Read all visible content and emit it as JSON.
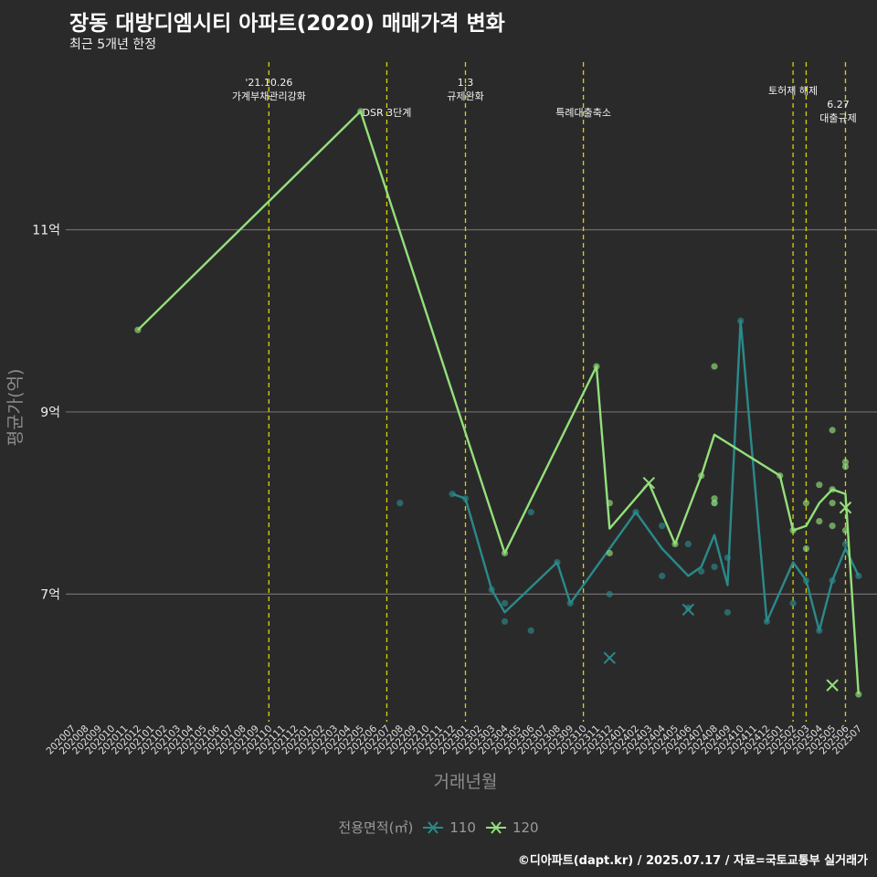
{
  "header": {
    "title": "장동 대방디엠시티 아파트(2020) 매매가격 변화",
    "subtitle": "최근 5개년 한정"
  },
  "caption": "©디아파트(dapt.kr) / 2025.07.17 / 자료=국토교통부 실거래가",
  "legend": {
    "title": "전용면적(㎡)",
    "items": [
      {
        "label": "110",
        "color": "#2a8a8a"
      },
      {
        "label": "120",
        "color": "#93e07a"
      }
    ]
  },
  "chart_data": {
    "type": "line",
    "xlabel": "거래년월",
    "ylabel": "평균가(억)",
    "ylim": [
      5.6,
      12.9
    ],
    "yticks": [
      7,
      9,
      11
    ],
    "ytick_labels": [
      "7억",
      "9억",
      "11억"
    ],
    "grid": true,
    "legend_position": "bottom",
    "x_categories": [
      "202007",
      "202008",
      "202009",
      "202010",
      "202011",
      "202012",
      "202101",
      "202102",
      "202103",
      "202104",
      "202105",
      "202106",
      "202107",
      "202108",
      "202109",
      "202110",
      "202111",
      "202112",
      "202201",
      "202202",
      "202203",
      "202204",
      "202205",
      "202206",
      "202207",
      "202208",
      "202209",
      "202210",
      "202211",
      "202212",
      "202301",
      "202302",
      "202303",
      "202304",
      "202305",
      "202306",
      "202307",
      "202308",
      "202309",
      "202310",
      "202311",
      "202312",
      "202401",
      "202402",
      "202403",
      "202404",
      "202405",
      "202406",
      "202407",
      "202408",
      "202409",
      "202410",
      "202411",
      "202412",
      "202501",
      "202502",
      "202503",
      "202504",
      "202505",
      "202506",
      "202507"
    ],
    "annotations": [
      {
        "x": "202110",
        "lines": [
          "'21.10.26",
          "가계부채관리강화"
        ],
        "row": 0
      },
      {
        "x": "202207",
        "lines": [
          "DSR 3단계"
        ],
        "row": 2
      },
      {
        "x": "202301",
        "lines": [
          "1.3",
          "규제완화"
        ],
        "row": 0
      },
      {
        "x": "202310",
        "lines": [
          "특례대출축소"
        ],
        "row": 2
      },
      {
        "x": "202502",
        "lines": [
          "토허제 해제"
        ],
        "row": 1
      },
      {
        "x": "202503",
        "lines": [],
        "row": 1
      },
      {
        "x": "202506",
        "lines": [
          "6.27",
          "대출규제"
        ],
        "row": 3
      }
    ],
    "series": [
      {
        "name": "110",
        "color": "#2a8a8a",
        "line": [
          {
            "x": "202212",
            "y": 8.1
          },
          {
            "x": "202301",
            "y": 8.05
          },
          {
            "x": "202303",
            "y": 7.05
          },
          {
            "x": "202304",
            "y": 6.8
          },
          {
            "x": "202308",
            "y": 7.35
          },
          {
            "x": "202309",
            "y": 6.9
          },
          {
            "x": "202402",
            "y": 7.9
          },
          {
            "x": "202404",
            "y": 7.5
          },
          {
            "x": "202406",
            "y": 7.2
          },
          {
            "x": "202407",
            "y": 7.3
          },
          {
            "x": "202408",
            "y": 7.65
          },
          {
            "x": "202409",
            "y": 7.1
          },
          {
            "x": "202410",
            "y": 10.0
          },
          {
            "x": "202412",
            "y": 6.7
          },
          {
            "x": "202502",
            "y": 7.35
          },
          {
            "x": "202503",
            "y": 7.15
          },
          {
            "x": "202504",
            "y": 6.6
          },
          {
            "x": "202505",
            "y": 7.15
          },
          {
            "x": "202506",
            "y": 7.5
          },
          {
            "x": "202507",
            "y": 7.2
          }
        ],
        "points": [
          {
            "x": "202208",
            "y": 8.0
          },
          {
            "x": "202212",
            "y": 8.1
          },
          {
            "x": "202301",
            "y": 8.05
          },
          {
            "x": "202303",
            "y": 7.05
          },
          {
            "x": "202304",
            "y": 6.9
          },
          {
            "x": "202304",
            "y": 6.7
          },
          {
            "x": "202306",
            "y": 6.6
          },
          {
            "x": "202306",
            "y": 7.9
          },
          {
            "x": "202308",
            "y": 7.35
          },
          {
            "x": "202309",
            "y": 6.9
          },
          {
            "x": "202312",
            "y": 7.0
          },
          {
            "x": "202402",
            "y": 7.9
          },
          {
            "x": "202404",
            "y": 7.2
          },
          {
            "x": "202404",
            "y": 7.75
          },
          {
            "x": "202406",
            "y": 7.55
          },
          {
            "x": "202406",
            "y": 6.85
          },
          {
            "x": "202407",
            "y": 7.25
          },
          {
            "x": "202408",
            "y": 7.3
          },
          {
            "x": "202408",
            "y": 8.0
          },
          {
            "x": "202409",
            "y": 7.4
          },
          {
            "x": "202409",
            "y": 6.8
          },
          {
            "x": "202410",
            "y": 10.0
          },
          {
            "x": "202412",
            "y": 6.7
          },
          {
            "x": "202502",
            "y": 6.9
          },
          {
            "x": "202503",
            "y": 7.15
          },
          {
            "x": "202504",
            "y": 6.6
          },
          {
            "x": "202505",
            "y": 7.15
          },
          {
            "x": "202506",
            "y": 7.55
          },
          {
            "x": "202507",
            "y": 7.2
          }
        ],
        "cancelled": [
          {
            "x": "202312",
            "y": 6.3
          },
          {
            "x": "202406",
            "y": 6.83
          }
        ]
      },
      {
        "name": "120",
        "color": "#93e07a",
        "line": [
          {
            "x": "202012",
            "y": 9.9
          },
          {
            "x": "202205",
            "y": 12.3
          },
          {
            "x": "202304",
            "y": 7.45
          },
          {
            "x": "202311",
            "y": 9.5
          },
          {
            "x": "202312",
            "y": 7.72
          },
          {
            "x": "202403",
            "y": 8.22
          },
          {
            "x": "202405",
            "y": 7.55
          },
          {
            "x": "202407",
            "y": 8.3
          },
          {
            "x": "202408",
            "y": 8.75
          },
          {
            "x": "202501",
            "y": 8.3
          },
          {
            "x": "202502",
            "y": 7.7
          },
          {
            "x": "202503",
            "y": 7.75
          },
          {
            "x": "202504",
            "y": 8.0
          },
          {
            "x": "202505",
            "y": 8.15
          },
          {
            "x": "202506",
            "y": 8.1
          },
          {
            "x": "202507",
            "y": 5.9
          }
        ],
        "points": [
          {
            "x": "202012",
            "y": 9.9
          },
          {
            "x": "202205",
            "y": 12.3
          },
          {
            "x": "202304",
            "y": 7.45
          },
          {
            "x": "202311",
            "y": 9.5
          },
          {
            "x": "202312",
            "y": 8.0
          },
          {
            "x": "202312",
            "y": 7.45
          },
          {
            "x": "202405",
            "y": 7.55
          },
          {
            "x": "202407",
            "y": 8.3
          },
          {
            "x": "202408",
            "y": 8.0
          },
          {
            "x": "202408",
            "y": 8.05
          },
          {
            "x": "202408",
            "y": 9.5
          },
          {
            "x": "202501",
            "y": 8.3
          },
          {
            "x": "202502",
            "y": 7.7
          },
          {
            "x": "202503",
            "y": 8.0
          },
          {
            "x": "202503",
            "y": 7.5
          },
          {
            "x": "202504",
            "y": 8.2
          },
          {
            "x": "202504",
            "y": 7.8
          },
          {
            "x": "202505",
            "y": 8.8
          },
          {
            "x": "202505",
            "y": 8.15
          },
          {
            "x": "202505",
            "y": 8.0
          },
          {
            "x": "202505",
            "y": 7.75
          },
          {
            "x": "202506",
            "y": 8.45
          },
          {
            "x": "202506",
            "y": 8.4
          },
          {
            "x": "202506",
            "y": 7.7
          },
          {
            "x": "202507",
            "y": 5.9
          }
        ],
        "cancelled": [
          {
            "x": "202403",
            "y": 8.22
          },
          {
            "x": "202505",
            "y": 6.0
          },
          {
            "x": "202506",
            "y": 7.95
          }
        ]
      }
    ]
  }
}
